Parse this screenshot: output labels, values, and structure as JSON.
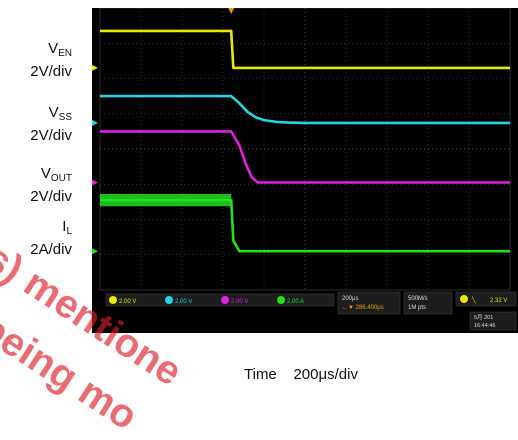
{
  "chart_data": {
    "type": "line",
    "title": "",
    "xlabel": "Time",
    "timebase": "200μs/div",
    "xlim": [
      0,
      10
    ],
    "ylim": [
      0,
      8
    ],
    "grid": true,
    "series": [
      {
        "name": "V",
        "sub": "EN",
        "scale": "2V/div",
        "color": "#e8e800",
        "x": [
          0,
          3.2,
          3.25,
          10
        ],
        "y": [
          7.35,
          7.35,
          6.3,
          6.3
        ]
      },
      {
        "name": "V",
        "sub": "SS",
        "scale": "2V/div",
        "color": "#26d4e6",
        "x": [
          0,
          3.2,
          3.4,
          3.6,
          3.8,
          4.0,
          4.3,
          4.6,
          5.0,
          10
        ],
        "y": [
          5.5,
          5.5,
          5.3,
          5.05,
          4.9,
          4.82,
          4.77,
          4.75,
          4.74,
          4.74
        ]
      },
      {
        "name": "V",
        "sub": "OUT",
        "scale": "2V/div",
        "color": "#e020e0",
        "x": [
          0,
          3.2,
          3.4,
          3.55,
          3.7,
          3.85,
          10
        ],
        "y": [
          4.5,
          4.5,
          4.1,
          3.6,
          3.2,
          3.05,
          3.05
        ]
      },
      {
        "name": "I",
        "sub": "L",
        "scale": "2A/div",
        "color": "#20e020",
        "x": [
          0,
          3.2,
          3.25,
          3.4,
          10
        ],
        "y": [
          2.55,
          2.55,
          1.4,
          1.1,
          1.1
        ],
        "band": 0.35
      }
    ]
  },
  "labels": [
    {
      "main": "V",
      "sub": "EN",
      "scale": "2V/div"
    },
    {
      "main": "V",
      "sub": "SS",
      "scale": "2V/div"
    },
    {
      "main": "V",
      "sub": "OUT",
      "scale": "2V/div"
    },
    {
      "main": "I",
      "sub": "L",
      "scale": "2A/div"
    }
  ],
  "status_bar": {
    "ch1": "2.00 V",
    "ch2": "2.00 V",
    "ch3": "2.00 V",
    "ch4": "2.00 A",
    "timebase": "200μs",
    "delay": "←▼ 286.400μs",
    "rate": "500M/s",
    "record": "1M pts",
    "trigger": "2.32 V",
    "date": "5月 201",
    "clock": "16:44:46"
  },
  "timebase_text": "Time    200μs/div",
  "watermark": [
    "(s) mentione",
    "being mo"
  ],
  "colors": {
    "en": "#e8e800",
    "ss": "#26d4e6",
    "out": "#e020e0",
    "il": "#20e020",
    "grid": "#5a5a5a"
  }
}
